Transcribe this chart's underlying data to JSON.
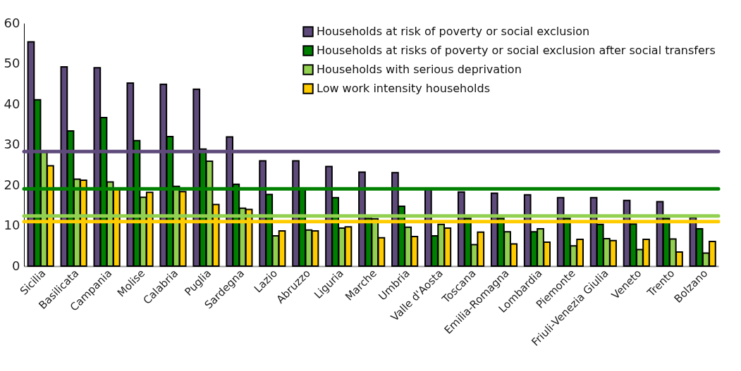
{
  "chart_data": {
    "type": "bar",
    "categories": [
      "Sicilia",
      "Basilicata",
      "Campania",
      "Molise",
      "Calabria",
      "Puglia",
      "Sardegna",
      "Lazio",
      "Abruzzo",
      "Liguria",
      "Marche",
      "Umbria",
      "Valle d'Aosta",
      "Toscana",
      "Emilia-Romagna",
      "Lombardia",
      "Piemonte",
      "Friuli-Venezia Giulia",
      "Veneto",
      "Trento",
      "Bolzano"
    ],
    "series": [
      {
        "name": "Households at risk of poverty or social exclusion",
        "color": "#5f4b7b",
        "values": [
          55.4,
          49.2,
          49.0,
          45.2,
          44.9,
          43.7,
          31.9,
          26.0,
          26.0,
          24.6,
          23.2,
          23.1,
          19.0,
          18.3,
          18.0,
          17.6,
          16.9,
          16.9,
          16.2,
          15.9,
          12.0
        ]
      },
      {
        "name": "Households at risks of poverty or social exclusion after social transfers",
        "color": "#008000",
        "values": [
          41.1,
          33.4,
          36.7,
          31.0,
          32.0,
          28.9,
          20.2,
          17.7,
          19.0,
          16.9,
          11.8,
          14.8,
          7.5,
          11.8,
          11.8,
          8.5,
          11.8,
          10.3,
          10.4,
          11.8,
          9.2
        ]
      },
      {
        "name": "Households with serious deprivation",
        "color": "#92d050",
        "values": [
          28.5,
          21.5,
          20.8,
          17.0,
          19.7,
          25.9,
          14.3,
          7.5,
          8.9,
          9.4,
          11.7,
          9.6,
          10.3,
          5.3,
          8.5,
          9.2,
          5.0,
          6.8,
          4.1,
          6.7,
          3.2
        ]
      },
      {
        "name": "Low work intensity households",
        "color": "#ffcc00",
        "values": [
          24.8,
          21.2,
          19.0,
          18.2,
          18.4,
          15.2,
          14.0,
          8.7,
          8.7,
          9.7,
          7.0,
          7.3,
          9.4,
          8.4,
          5.5,
          5.9,
          6.6,
          6.3,
          6.6,
          3.5,
          6.1
        ]
      }
    ],
    "ylim": [
      0,
      60
    ],
    "yticks": [
      0,
      10,
      20,
      30,
      40,
      50,
      60
    ],
    "grid": false,
    "legend": "top right",
    "ref_lines": [
      {
        "axis": "y",
        "value": 28.3,
        "color": "#5f4b7b"
      },
      {
        "axis": "y",
        "value": 19.1,
        "color": "#008000"
      },
      {
        "axis": "y",
        "value": 12.4,
        "color": "#92d050"
      },
      {
        "axis": "y",
        "value": 11.0,
        "color": "#ffcc00"
      }
    ]
  }
}
